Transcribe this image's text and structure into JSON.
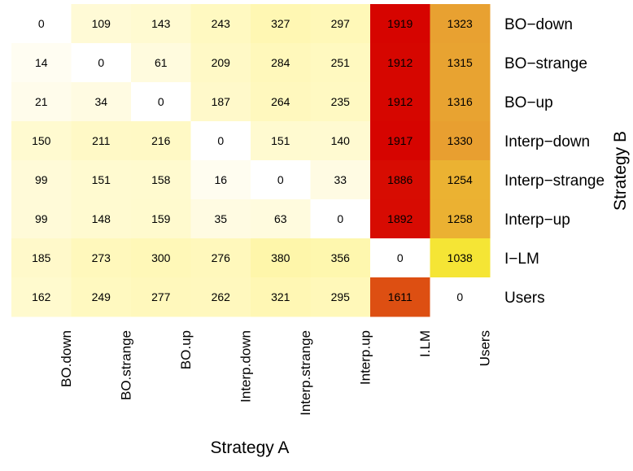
{
  "chart_data": {
    "type": "heatmap",
    "xlabel": "Strategy A",
    "ylabel": "Strategy B",
    "x_categories": [
      "BO.down",
      "BO.strange",
      "BO.up",
      "Interp.down",
      "Interp.strange",
      "Interp.up",
      "I.LM",
      "Users"
    ],
    "y_categories": [
      "BO−down",
      "BO−strange",
      "BO−up",
      "Interp−down",
      "Interp−strange",
      "Interp−up",
      "I−LM",
      "Users"
    ],
    "values": [
      [
        0,
        109,
        143,
        243,
        327,
        297,
        1919,
        1323
      ],
      [
        14,
        0,
        61,
        209,
        284,
        251,
        1912,
        1315
      ],
      [
        21,
        34,
        0,
        187,
        264,
        235,
        1912,
        1316
      ],
      [
        150,
        211,
        216,
        0,
        151,
        140,
        1917,
        1330
      ],
      [
        99,
        151,
        158,
        16,
        0,
        33,
        1886,
        1254
      ],
      [
        99,
        148,
        159,
        35,
        63,
        0,
        1892,
        1258
      ],
      [
        185,
        273,
        300,
        276,
        380,
        356,
        0,
        1038
      ],
      [
        162,
        249,
        277,
        262,
        321,
        295,
        1611,
        0
      ]
    ],
    "color_scale": {
      "stops": [
        [
          0,
          "#ffffff"
        ],
        [
          30,
          "#fffbe3"
        ],
        [
          300,
          "#fff8b8"
        ],
        [
          1038,
          "#f5e535"
        ],
        [
          1320,
          "#e8a231"
        ],
        [
          1611,
          "#dd4f12"
        ],
        [
          1919,
          "#d60400"
        ]
      ]
    }
  }
}
